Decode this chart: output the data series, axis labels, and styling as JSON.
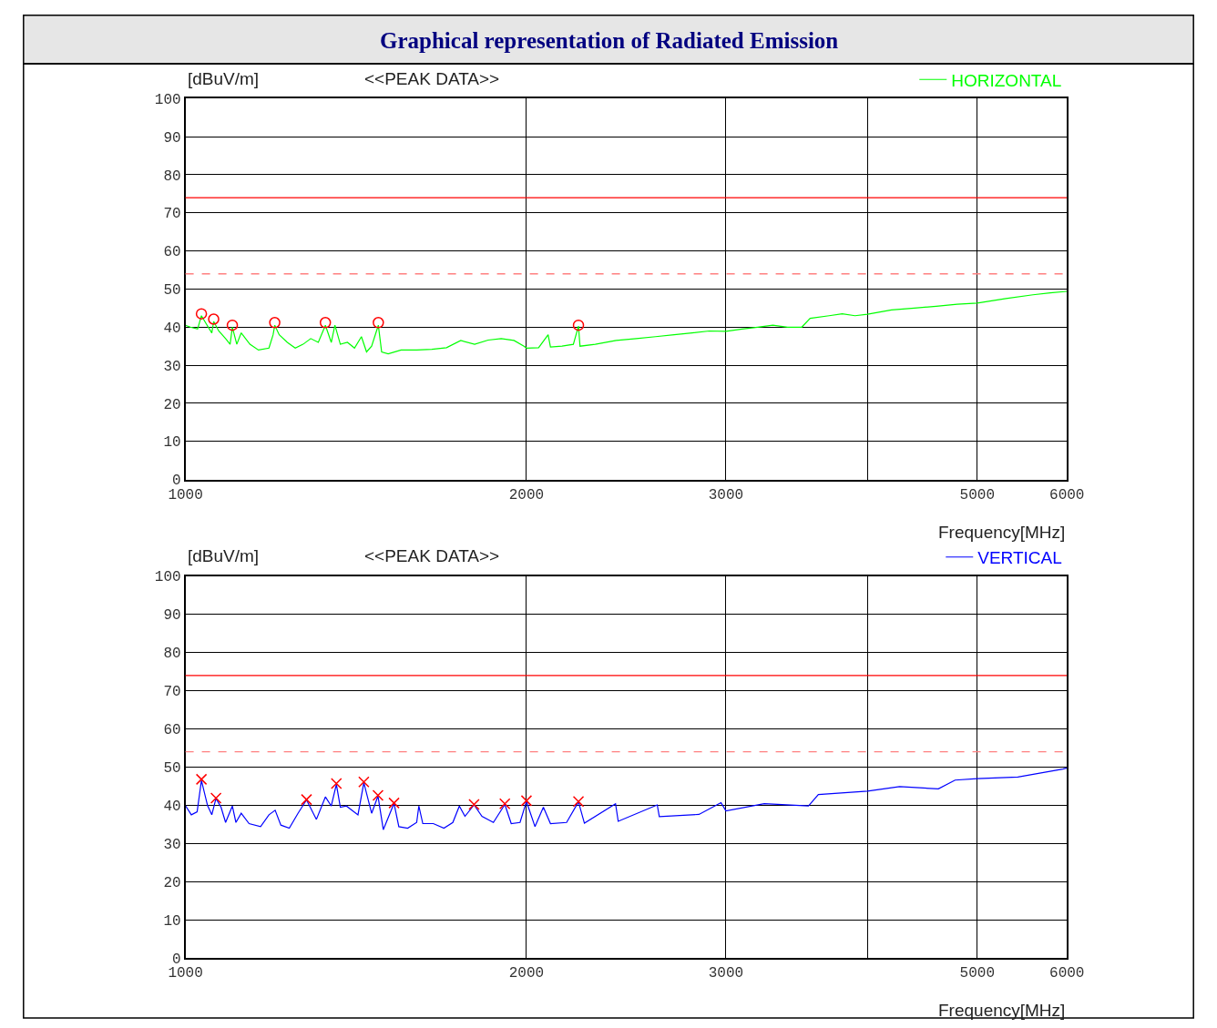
{
  "chart_data": [
    {
      "type": "line",
      "title": "Graphical representation of Radiated Emission",
      "xlabel": "Frequency[MHz]",
      "ylabel": "[dBuV/m]",
      "annotations": [
        "<<PEAK DATA>>"
      ],
      "log": "x",
      "grid": true,
      "legend": "top right",
      "xlim": [
        1000,
        6000
      ],
      "ylim": [
        0,
        100
      ],
      "xticks": [
        1000,
        2000,
        3000,
        {
          "value": 4000,
          "label": null
        },
        5000,
        6000
      ],
      "yticks": [
        0,
        10,
        20,
        30,
        40,
        50,
        60,
        70,
        80,
        90,
        100
      ],
      "ref_lines": [
        {
          "axis": "y",
          "value": 74,
          "label": null,
          "color": "#ff0000",
          "line_style": "solid"
        },
        {
          "axis": "y",
          "value": 54,
          "label": null,
          "color": "#ff8080",
          "line_style": "dashed"
        }
      ],
      "series": [
        {
          "name": "HORIZONTAL",
          "marker": "none",
          "color": "#00ff00",
          "x": [
            1000,
            1010,
            1025,
            1033,
            1045,
            1055,
            1059,
            1070,
            1085,
            1095,
            1100,
            1110,
            1120,
            1140,
            1160,
            1185,
            1195,
            1199,
            1210,
            1230,
            1250,
            1270,
            1290,
            1310,
            1329,
            1345,
            1355,
            1370,
            1390,
            1410,
            1430,
            1445,
            1460,
            1480,
            1490,
            1510,
            1550,
            1600,
            1650,
            1700,
            1750,
            1800,
            1850,
            1900,
            1950,
            1990,
            2000,
            2050,
            2090,
            2100,
            2150,
            2200,
            2223,
            2230,
            2300,
            2400,
            2500,
            2600,
            2700,
            2800,
            2900,
            3000,
            3100,
            3200,
            3300,
            3400,
            3500,
            3560,
            3700,
            3800,
            3900,
            4000,
            4200,
            4400,
            4600,
            4800,
            5000,
            5300,
            5600,
            5800,
            6000
          ],
          "values": [
            40.5,
            40.0,
            39.5,
            43.0,
            40.5,
            38.5,
            41.5,
            39,
            37,
            35.5,
            40.0,
            35.5,
            38.5,
            35.5,
            34,
            34.5,
            38,
            40.5,
            38,
            36,
            34.5,
            35.5,
            37,
            36,
            40.5,
            36,
            40.5,
            35.5,
            36,
            34.5,
            37.5,
            33.5,
            35,
            40.5,
            33.5,
            33,
            34,
            34,
            34.2,
            34.6,
            36.5,
            35.5,
            36.6,
            37,
            36.5,
            35,
            34.5,
            34.6,
            38,
            34.8,
            35,
            35.5,
            40.3,
            35,
            35.5,
            36.5,
            37,
            37.5,
            38,
            38.5,
            39,
            38.9,
            39.5,
            40,
            40.5,
            40,
            40,
            42.3,
            43,
            43.5,
            43,
            43.4,
            44.5,
            45,
            45.5,
            46,
            46.3,
            47.5,
            48.5,
            49,
            49.4
          ]
        },
        {
          "type": "scatter",
          "marker": "circle",
          "color": "#ff0000",
          "x": [
            1033,
            1059,
            1100,
            1199,
            1329,
            1480,
            2223
          ],
          "values": [
            43.5,
            42.1,
            40.5,
            41.2,
            41.2,
            41.2,
            40.5
          ]
        }
      ]
    },
    {
      "type": "line",
      "xlabel": "Frequency[MHz]",
      "ylabel": "[dBuV/m]",
      "annotations": [
        "<<PEAK DATA>>"
      ],
      "log": "x",
      "grid": true,
      "legend": "top right",
      "xlim": [
        1000,
        6000
      ],
      "ylim": [
        0,
        100
      ],
      "xticks": [
        1000,
        2000,
        3000,
        {
          "value": 4000,
          "label": null
        },
        5000,
        6000
      ],
      "yticks": [
        0,
        10,
        20,
        30,
        40,
        50,
        60,
        70,
        80,
        90,
        100
      ],
      "ref_lines": [
        {
          "axis": "y",
          "value": 74,
          "label": null,
          "color": "#ff0000",
          "line_style": "solid"
        },
        {
          "axis": "y",
          "value": 54,
          "label": null,
          "color": "#ff8080",
          "line_style": "dashed"
        }
      ],
      "series": [
        {
          "name": "VERTICAL",
          "marker": "none",
          "color": "#0000ff",
          "x": [
            1000,
            1012,
            1024,
            1033,
            1046,
            1055,
            1064,
            1075,
            1085,
            1100,
            1108,
            1120,
            1138,
            1165,
            1185,
            1200,
            1214,
            1235,
            1257,
            1279,
            1305,
            1329,
            1345,
            1359,
            1370,
            1387,
            1420,
            1437,
            1460,
            1479,
            1495,
            1528,
            1543,
            1571,
            1600,
            1607,
            1620,
            1655,
            1691,
            1722,
            1745,
            1765,
            1798,
            1827,
            1870,
            1914,
            1939,
            1974,
            2000,
            2035,
            2070,
            2100,
            2170,
            2223,
            2250,
            2397,
            2410,
            2609,
            2620,
            2840,
            2970,
            3000,
            3243,
            3548,
            3620,
            4000,
            4270,
            4620,
            4780,
            5000,
            5430,
            5950,
            6000
          ],
          "values": [
            39.9,
            37.5,
            38.3,
            46.5,
            39.9,
            37.5,
            41.8,
            39.5,
            35.5,
            39.8,
            35.5,
            37.9,
            35.2,
            34.4,
            37.5,
            38.7,
            34.8,
            34,
            37.9,
            41.4,
            36.3,
            42.2,
            39.8,
            45.5,
            39.5,
            39.8,
            37.5,
            45.9,
            37.9,
            42.4,
            33.6,
            40.5,
            34.4,
            34,
            35.5,
            39.8,
            35.2,
            35.2,
            34,
            35.5,
            39.8,
            37.1,
            40.1,
            37.1,
            35.5,
            40.2,
            35.2,
            35.5,
            41,
            34.4,
            39.5,
            35.2,
            35.5,
            40.9,
            35.3,
            40.4,
            35.8,
            40.1,
            37,
            37.6,
            40.7,
            38.5,
            40.4,
            39.8,
            42.8,
            43.7,
            44.9,
            44.3,
            46.6,
            47,
            47.4,
            49.5,
            49.8
          ]
        },
        {
          "type": "scatter",
          "marker": "cross",
          "color": "#ff0000",
          "x": [
            1033,
            1064,
            1279,
            1359,
            1437,
            1479,
            1528,
            1798,
            1914,
            2000,
            2223
          ],
          "values": [
            46.8,
            41.9,
            41.5,
            45.7,
            46.1,
            42.6,
            40.6,
            40.2,
            40.4,
            41.2,
            41.0
          ]
        }
      ]
    }
  ]
}
